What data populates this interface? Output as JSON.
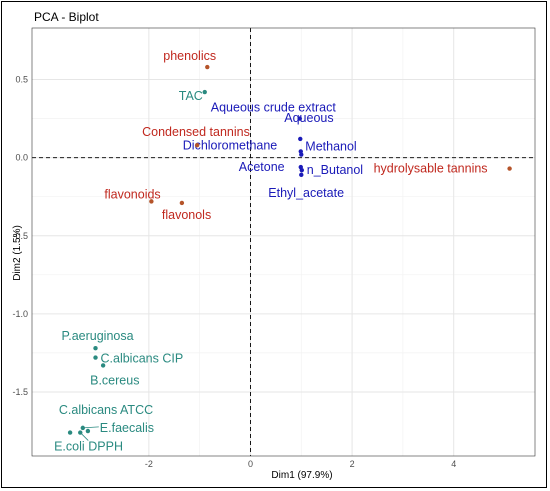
{
  "chart_data": {
    "type": "scatter",
    "title": "PCA - Biplot",
    "xlabel": "Dim1 (97.9%)",
    "ylabel": "Dim2 (1.5%)",
    "xlim": [
      -4.3,
      5.6
    ],
    "ylim": [
      -1.91,
      0.83
    ],
    "x_ticks": [
      -2,
      0,
      2,
      4
    ],
    "y_ticks": [
      0.5,
      0.0,
      -0.5,
      -1.0,
      -1.5
    ],
    "x_tick_labels": [
      "-2",
      "0",
      "2",
      "4"
    ],
    "y_tick_labels": [
      "0.5",
      "0.0",
      "-0.5",
      "-1.0",
      "-1.5"
    ],
    "grid": true,
    "colors": {
      "variables_blue": "#1a1ab8",
      "variables_red": "#c0281e",
      "individuals": "#2a8a80",
      "red_point": "#b5542a"
    },
    "series": [
      {
        "group": "blue",
        "points": [
          {
            "label": "Aqueous crude extract",
            "x": 0.97,
            "y": 0.25
          },
          {
            "label": "Aqueous",
            "x": 0.98,
            "y": 0.12
          },
          {
            "label": "Dichloromethane",
            "x": 0.99,
            "y": 0.04
          },
          {
            "label": "Methanol",
            "x": 1.0,
            "y": 0.02
          },
          {
            "label": "Acetone",
            "x": 0.99,
            "y": -0.06
          },
          {
            "label": "n_Butanol",
            "x": 1.01,
            "y": -0.08
          },
          {
            "label": "Ethyl_acetate",
            "x": 1.0,
            "y": -0.11
          }
        ]
      },
      {
        "group": "red",
        "points": [
          {
            "label": "phenolics",
            "x": -0.85,
            "y": 0.58
          },
          {
            "label": "Condensed tannins",
            "x": -1.05,
            "y": 0.08
          },
          {
            "label": "hydrolysable tannins",
            "x": 5.1,
            "y": -0.07
          },
          {
            "label": "flavonoids",
            "x": -1.95,
            "y": -0.28
          },
          {
            "label": "flavonols",
            "x": -1.35,
            "y": -0.29
          }
        ]
      },
      {
        "group": "teal",
        "points": [
          {
            "label": "TAC",
            "x": -0.9,
            "y": 0.42
          },
          {
            "label": "P.aeruginosa",
            "x": -3.05,
            "y": -1.22
          },
          {
            "label": "C.albicans CIP",
            "x": -3.05,
            "y": -1.28
          },
          {
            "label": "B.cereus",
            "x": -2.9,
            "y": -1.33
          },
          {
            "label": "C.albicans ATCC",
            "x": -3.2,
            "y": -1.75
          },
          {
            "label": "E.faecalis",
            "x": -3.3,
            "y": -1.73
          },
          {
            "label": "E.coli",
            "x": -3.55,
            "y": -1.76
          },
          {
            "label": "DPPH",
            "x": -3.35,
            "y": -1.76
          }
        ]
      }
    ]
  }
}
